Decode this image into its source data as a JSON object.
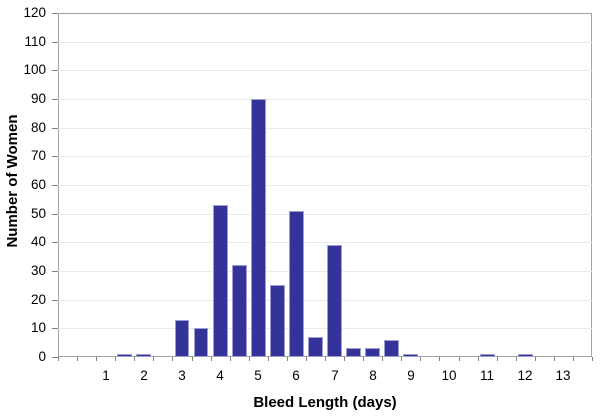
{
  "chart_data": {
    "type": "bar",
    "title": "",
    "xlabel": "Bleed Length (days)",
    "ylabel": "Number of Women",
    "categories": [
      0,
      0.5,
      1,
      1.5,
      2,
      2.5,
      3,
      3.5,
      4,
      4.5,
      5,
      5.5,
      6,
      6.5,
      7,
      7.5,
      8,
      8.5,
      9,
      9.5,
      10,
      10.5,
      11,
      11.5,
      12,
      12.5,
      13,
      13.5
    ],
    "values": [
      0,
      0,
      0,
      1,
      1,
      0,
      13,
      10,
      53,
      32,
      90,
      25,
      51,
      7,
      39,
      3,
      3,
      6,
      1,
      0,
      0,
      0,
      1,
      0,
      1,
      0,
      0,
      0
    ],
    "x_tick_labels": [
      1,
      2,
      3,
      4,
      5,
      6,
      7,
      8,
      9,
      10,
      11,
      12,
      13
    ],
    "yticks": [
      0,
      10,
      20,
      30,
      40,
      50,
      60,
      70,
      80,
      90,
      100,
      110,
      120
    ],
    "ylim": [
      0,
      120
    ],
    "y_tick_step": 10,
    "grid": "horizontal",
    "legend_position": "none",
    "bin_width_days": 0.5,
    "bar_color": "#333399",
    "bar_border_color": "#9d9dce",
    "grid_color": "#eaeaea",
    "axis_color": "#a3a3a3",
    "tick_color": "#808080",
    "text_color": "#000000",
    "background_color": "#ffffff"
  }
}
